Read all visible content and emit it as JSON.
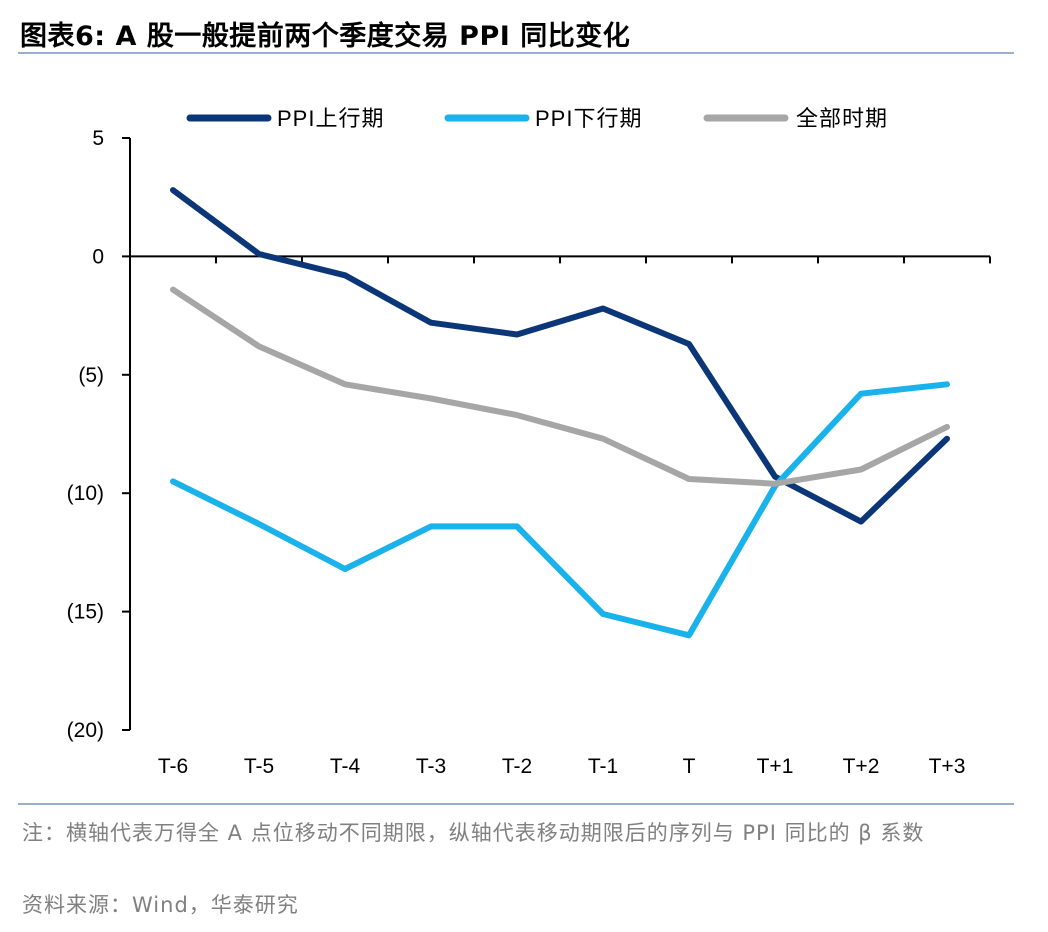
{
  "title": "图表6:  A 股一般提前两个季度交易 PPI 同比变化",
  "note": "注：横轴代表万得全 A 点位移动不同期限，纵轴代表移动期限后的序列与 PPI 同比的 β 系数",
  "source": "资料来源：Wind，华泰研究",
  "colors": {
    "up": "#0b3677",
    "down": "#1ab2ea",
    "all": "#a6a6a6"
  },
  "chart_data": {
    "type": "line",
    "categories": [
      "T-6",
      "T-5",
      "T-4",
      "T-3",
      "T-2",
      "T-1",
      "T",
      "T+1",
      "T+2",
      "T+3"
    ],
    "ylim": [
      -20,
      5
    ],
    "yticks": [
      5,
      0,
      -5,
      -10,
      -15,
      -20
    ],
    "ytick_labels": [
      "5",
      "0",
      "(5)",
      "(10)",
      "(15)",
      "(20)"
    ],
    "legend_position": "top",
    "series": [
      {
        "name": "PPI上行期",
        "color": "#0b3677",
        "values": [
          2.8,
          0.1,
          -0.8,
          -2.8,
          -3.3,
          -2.2,
          -3.7,
          -9.3,
          -11.2,
          -7.7
        ]
      },
      {
        "name": "PPI下行期",
        "color": "#1ab2ea",
        "values": [
          -9.5,
          -11.3,
          -13.2,
          -11.4,
          -11.4,
          -15.1,
          -16.0,
          -9.7,
          -5.8,
          -5.4
        ]
      },
      {
        "name": "全部时期",
        "color": "#a6a6a6",
        "values": [
          -1.4,
          -3.8,
          -5.4,
          -6.0,
          -6.7,
          -7.7,
          -9.4,
          -9.6,
          -9.0,
          -7.2
        ]
      }
    ]
  }
}
